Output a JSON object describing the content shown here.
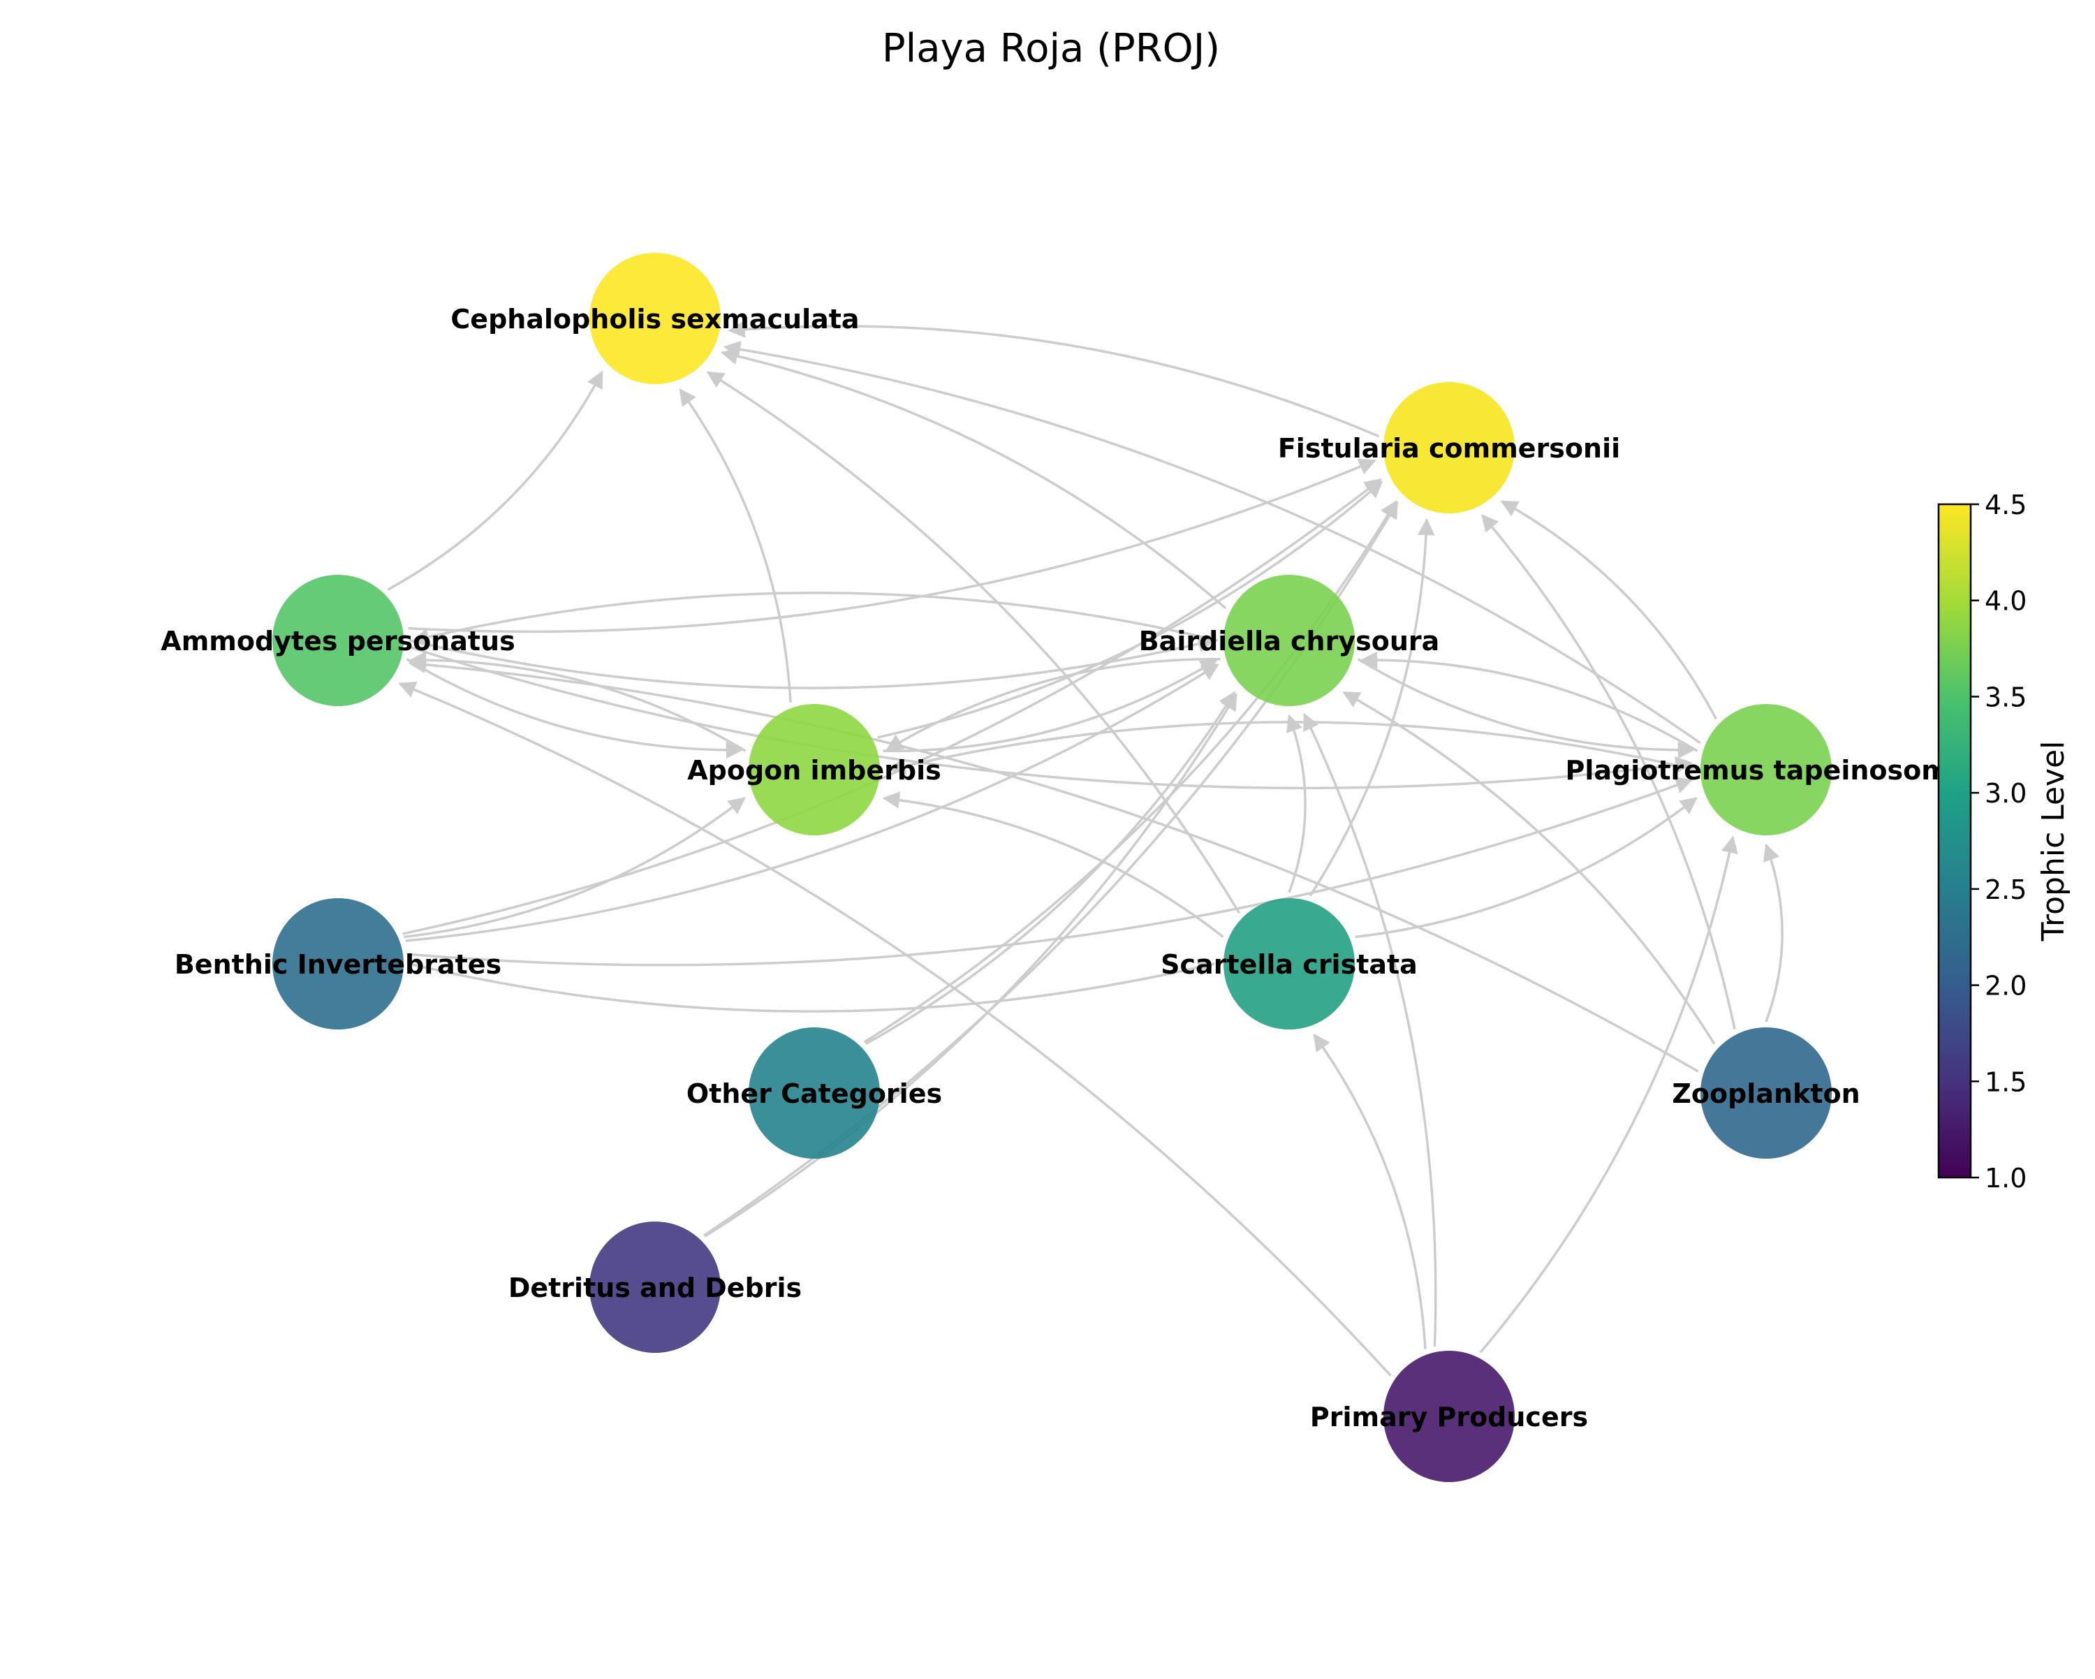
{
  "title": "Playa Roja (PROJ)",
  "colorbar": {
    "label": "Trophic Level",
    "min": 1.0,
    "max": 4.5,
    "ticks": [
      "1.0",
      "1.5",
      "2.0",
      "2.5",
      "3.0",
      "3.5",
      "4.0",
      "4.5"
    ]
  },
  "nodes": [
    {
      "id": "cephalopholis",
      "label": "Cephalopholis sexmaculata",
      "trophic_level": 4.5,
      "color": "#fde725"
    },
    {
      "id": "fistularia",
      "label": "Fistularia commersonii",
      "trophic_level": 4.5,
      "color": "#f5e61e"
    },
    {
      "id": "ammodytes",
      "label": "Ammodytes personatus",
      "trophic_level": 3.6,
      "color": "#54c568"
    },
    {
      "id": "bairdiella",
      "label": "Bairdiella chrysoura",
      "trophic_level": 3.8,
      "color": "#7ad151"
    },
    {
      "id": "apogon",
      "label": "Apogon imberbis",
      "trophic_level": 3.9,
      "color": "#8fd744"
    },
    {
      "id": "plagiotremus",
      "label": "Plagiotremus tapeinosoma",
      "trophic_level": 3.8,
      "color": "#7ad151"
    },
    {
      "id": "benthic",
      "label": "Benthic Invertebrates",
      "trophic_level": 2.4,
      "color": "#2e6f8e"
    },
    {
      "id": "scartella",
      "label": "Scartella cristata",
      "trophic_level": 3.0,
      "color": "#23a083"
    },
    {
      "id": "other",
      "label": "Other Categories",
      "trophic_level": 2.6,
      "color": "#25838e"
    },
    {
      "id": "zooplankton",
      "label": "Zooplankton",
      "trophic_level": 2.3,
      "color": "#31688e"
    },
    {
      "id": "detritus",
      "label": "Detritus and Debris",
      "trophic_level": 1.7,
      "color": "#443a83"
    },
    {
      "id": "primary",
      "label": "Primary Producers",
      "trophic_level": 1.0,
      "color": "#481a6c"
    }
  ],
  "edges": [
    {
      "from": "ammodytes",
      "to": "cephalopholis"
    },
    {
      "from": "apogon",
      "to": "cephalopholis"
    },
    {
      "from": "bairdiella",
      "to": "cephalopholis"
    },
    {
      "from": "fistularia",
      "to": "cephalopholis"
    },
    {
      "from": "plagiotremus",
      "to": "cephalopholis"
    },
    {
      "from": "scartella",
      "to": "cephalopholis"
    },
    {
      "from": "ammodytes",
      "to": "fistularia"
    },
    {
      "from": "apogon",
      "to": "fistularia"
    },
    {
      "from": "benthic",
      "to": "fistularia"
    },
    {
      "from": "scartella",
      "to": "fistularia"
    },
    {
      "from": "zooplankton",
      "to": "fistularia"
    },
    {
      "from": "plagiotremus",
      "to": "fistularia"
    },
    {
      "from": "other",
      "to": "fistularia"
    },
    {
      "from": "detritus",
      "to": "fistularia"
    },
    {
      "from": "ammodytes",
      "to": "bairdiella"
    },
    {
      "from": "benthic",
      "to": "bairdiella"
    },
    {
      "from": "scartella",
      "to": "bairdiella"
    },
    {
      "from": "primary",
      "to": "bairdiella"
    },
    {
      "from": "zooplankton",
      "to": "bairdiella"
    },
    {
      "from": "apogon",
      "to": "bairdiella"
    },
    {
      "from": "plagiotremus",
      "to": "bairdiella"
    },
    {
      "from": "other",
      "to": "bairdiella"
    },
    {
      "from": "detritus",
      "to": "bairdiella"
    },
    {
      "from": "ammodytes",
      "to": "apogon"
    },
    {
      "from": "benthic",
      "to": "apogon"
    },
    {
      "from": "scartella",
      "to": "apogon"
    },
    {
      "from": "plagiotremus",
      "to": "apogon"
    },
    {
      "from": "bairdiella",
      "to": "apogon"
    },
    {
      "from": "apogon",
      "to": "ammodytes"
    },
    {
      "from": "bairdiella",
      "to": "ammodytes"
    },
    {
      "from": "primary",
      "to": "ammodytes"
    },
    {
      "from": "zooplankton",
      "to": "ammodytes"
    },
    {
      "from": "ammodytes",
      "to": "plagiotremus"
    },
    {
      "from": "benthic",
      "to": "plagiotremus"
    },
    {
      "from": "bairdiella",
      "to": "plagiotremus"
    },
    {
      "from": "scartella",
      "to": "plagiotremus"
    },
    {
      "from": "primary",
      "to": "plagiotremus"
    },
    {
      "from": "zooplankton",
      "to": "plagiotremus"
    },
    {
      "from": "benthic",
      "to": "scartella"
    },
    {
      "from": "primary",
      "to": "scartella"
    }
  ]
}
